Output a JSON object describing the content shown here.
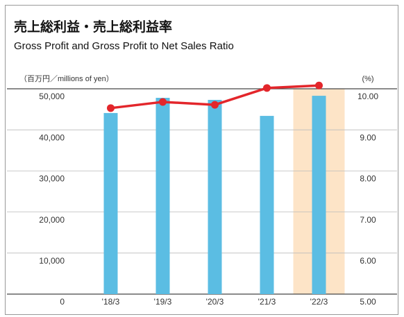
{
  "chart_data": {
    "type": "bar_line",
    "title": "売上総利益・売上総利益率",
    "subtitle": "Gross Profit and Gross Profit to Net Sales Ratio",
    "y_label": "（百万円／millions of yen）",
    "y2_label": "(%)",
    "categories": [
      "'18/3",
      "'19/3",
      "'20/3",
      "'21/3",
      "'22/3"
    ],
    "series": [
      {
        "type": "bar",
        "color": "#5bbde3",
        "values": [
          44100,
          47800,
          47300,
          43400,
          48300
        ]
      },
      {
        "type": "line",
        "axis": "y2",
        "color": "#e3262b",
        "values": [
          9.53,
          9.68,
          9.61,
          10.02,
          10.08
        ]
      }
    ],
    "highlight": {
      "category": "'22/3",
      "color": "#fde4c7"
    },
    "ylim": [
      0,
      50000
    ],
    "yticks": [
      0,
      {
        "value": 10000,
        "label": "10,000"
      },
      {
        "value": 20000,
        "label": "20,000"
      },
      {
        "value": 30000,
        "label": "30,000"
      },
      {
        "value": 40000,
        "label": "40,000"
      },
      {
        "value": 50000,
        "label": "50,000"
      }
    ],
    "y2lim": [
      5,
      10
    ],
    "y2ticks": [
      {
        "value": 5,
        "label": "5.00"
      },
      {
        "value": 6,
        "label": "6.00"
      },
      {
        "value": 7,
        "label": "7.00"
      },
      {
        "value": 8,
        "label": "8.00"
      },
      {
        "value": 9,
        "label": "9.00"
      },
      {
        "value": 10,
        "label": "10.00"
      }
    ],
    "grid": true
  }
}
